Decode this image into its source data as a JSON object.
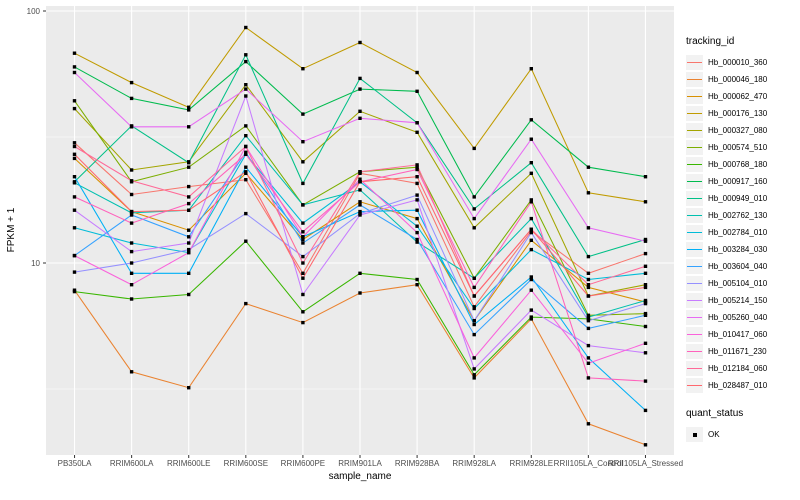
{
  "chart_data": {
    "type": "line",
    "title": "",
    "xlabel": "sample_name",
    "ylabel": "FPKM + 1",
    "x_type": "categorical",
    "y_scale": "log10",
    "grid": true,
    "legend_position": "right",
    "legend_title": "tracking_id",
    "panel_bg": "#ebebeb",
    "gridline_color": "#ffffff",
    "point_marker": "filled-black-square",
    "y_ticks": [
      {
        "label": "100",
        "value": 100
      },
      {
        "label": "10",
        "value": 10
      }
    ],
    "y_minor_gridlines": [
      31.62,
      3.162
    ],
    "ylim_displayed": [
      1.8,
      105
    ],
    "categories": [
      "PB350LA",
      "RRIM600LA",
      "RRIM600LE",
      "RRIM600SE",
      "RRIM600PE",
      "RRIM901LA",
      "RRIM928BA",
      "RRIM928LA",
      "RRIM928LE",
      "RRII105LA_Control",
      "RRII105LA_Stressed"
    ],
    "series": [
      {
        "name": "Hb_000010_360",
        "color": "#F8766D",
        "values": [
          30,
          18.7,
          20.1,
          21.4,
          9.1,
          22.7,
          20.7,
          6.7,
          13.4,
          9.1,
          10.9
        ]
      },
      {
        "name": "Hb_000046_180",
        "color": "#EA8331",
        "values": [
          7.8,
          3.7,
          3.2,
          6.9,
          5.8,
          7.6,
          8.2,
          3.5,
          6.0,
          2.3,
          1.9
        ]
      },
      {
        "name": "Hb_000062_470",
        "color": "#D89000",
        "values": [
          26,
          16,
          13.5,
          22.7,
          12.4,
          17.5,
          15,
          5.9,
          12.3,
          8.0,
          7.0
        ]
      },
      {
        "name": "Hb_000176_130",
        "color": "#C09B00",
        "values": [
          68,
          52,
          41.5,
          86,
          59,
          75,
          57,
          28.5,
          59,
          19,
          17.5
        ]
      },
      {
        "name": "Hb_000327_080",
        "color": "#A3A500",
        "values": [
          41,
          23.4,
          25.2,
          51,
          25.2,
          40,
          33,
          13.8,
          22.7,
          7.4,
          8.2
        ]
      },
      {
        "name": "Hb_000574_510",
        "color": "#7CAE00",
        "values": [
          44,
          21,
          24,
          35,
          17,
          23,
          24,
          8.7,
          17.8,
          6.2,
          6.3
        ]
      },
      {
        "name": "Hb_000768_180",
        "color": "#39B600",
        "values": [
          7.7,
          7.2,
          7.5,
          12.2,
          6.4,
          9.1,
          8.6,
          3.6,
          6.1,
          6.0,
          5.6
        ]
      },
      {
        "name": "Hb_000917_160",
        "color": "#00BB4E",
        "values": [
          60,
          45,
          40.5,
          63,
          39,
          49,
          48,
          18.3,
          37,
          24,
          22
        ]
      },
      {
        "name": "Hb_000949_010",
        "color": "#00C087",
        "values": [
          21,
          35,
          25,
          67,
          20.7,
          54,
          36,
          16.4,
          25,
          10.6,
          12.4
        ]
      },
      {
        "name": "Hb_002762_130",
        "color": "#00C0AF",
        "values": [
          20.8,
          15.8,
          16.2,
          32,
          17,
          19.5,
          12.1,
          8.7,
          15,
          6.1,
          7.1
        ]
      },
      {
        "name": "Hb_002784_010",
        "color": "#00BCD8",
        "values": [
          13.8,
          12,
          11,
          27,
          14.4,
          21,
          14,
          6.6,
          11.3,
          8.6,
          9.1
        ]
      },
      {
        "name": "Hb_003284_030",
        "color": "#00B0F6",
        "values": [
          22,
          9.1,
          9.1,
          24,
          12.7,
          16,
          16.2,
          5.7,
          8.8,
          4.2,
          2.6
        ]
      },
      {
        "name": "Hb_003604_040",
        "color": "#35A2FF",
        "values": [
          10.7,
          15.5,
          12.7,
          27.5,
          12,
          17,
          12.4,
          5.2,
          8.6,
          5.5,
          6.2
        ]
      },
      {
        "name": "Hb_005104_010",
        "color": "#9590FF",
        "values": [
          9.2,
          10,
          11.3,
          15.7,
          10.6,
          15.7,
          18.6,
          5.9,
          13.2,
          5.9,
          6.9
        ]
      },
      {
        "name": "Hb_005214_150",
        "color": "#C77CFF",
        "values": [
          16.2,
          11.1,
          12,
          46,
          7.5,
          15.5,
          17.8,
          3.8,
          6.5,
          4.7,
          4.4
        ]
      },
      {
        "name": "Hb_005260_040",
        "color": "#E76BF3",
        "values": [
          57,
          34.7,
          34.7,
          49,
          30.3,
          37.5,
          36,
          15,
          31,
          13.8,
          12.2
        ]
      },
      {
        "name": "Hb_010417_060",
        "color": "#FA62DB",
        "values": [
          10.7,
          8.2,
          11,
          29,
          12.7,
          21.5,
          13.2,
          4.2,
          7.8,
          4.0,
          4.8
        ]
      },
      {
        "name": "Hb_011671_230",
        "color": "#FF62BC",
        "values": [
          18.3,
          14.4,
          17.2,
          27,
          13.3,
          21,
          23.5,
          8.0,
          17.5,
          3.5,
          3.4
        ]
      },
      {
        "name": "Hb_012184_060",
        "color": "#FF6A98",
        "values": [
          29,
          21.2,
          18.3,
          29,
          10,
          23,
          24.5,
          7.4,
          13.6,
          8.2,
          9.7
        ]
      },
      {
        "name": "Hb_028487_010",
        "color": "#FF686E",
        "values": [
          27,
          16,
          16.2,
          23,
          8.7,
          21,
          22,
          7.4,
          13.6,
          7.4,
          8.0
        ]
      }
    ],
    "quant_status": {
      "title": "quant_status",
      "items": [
        {
          "label": "OK",
          "marker": "black-square"
        }
      ]
    }
  }
}
